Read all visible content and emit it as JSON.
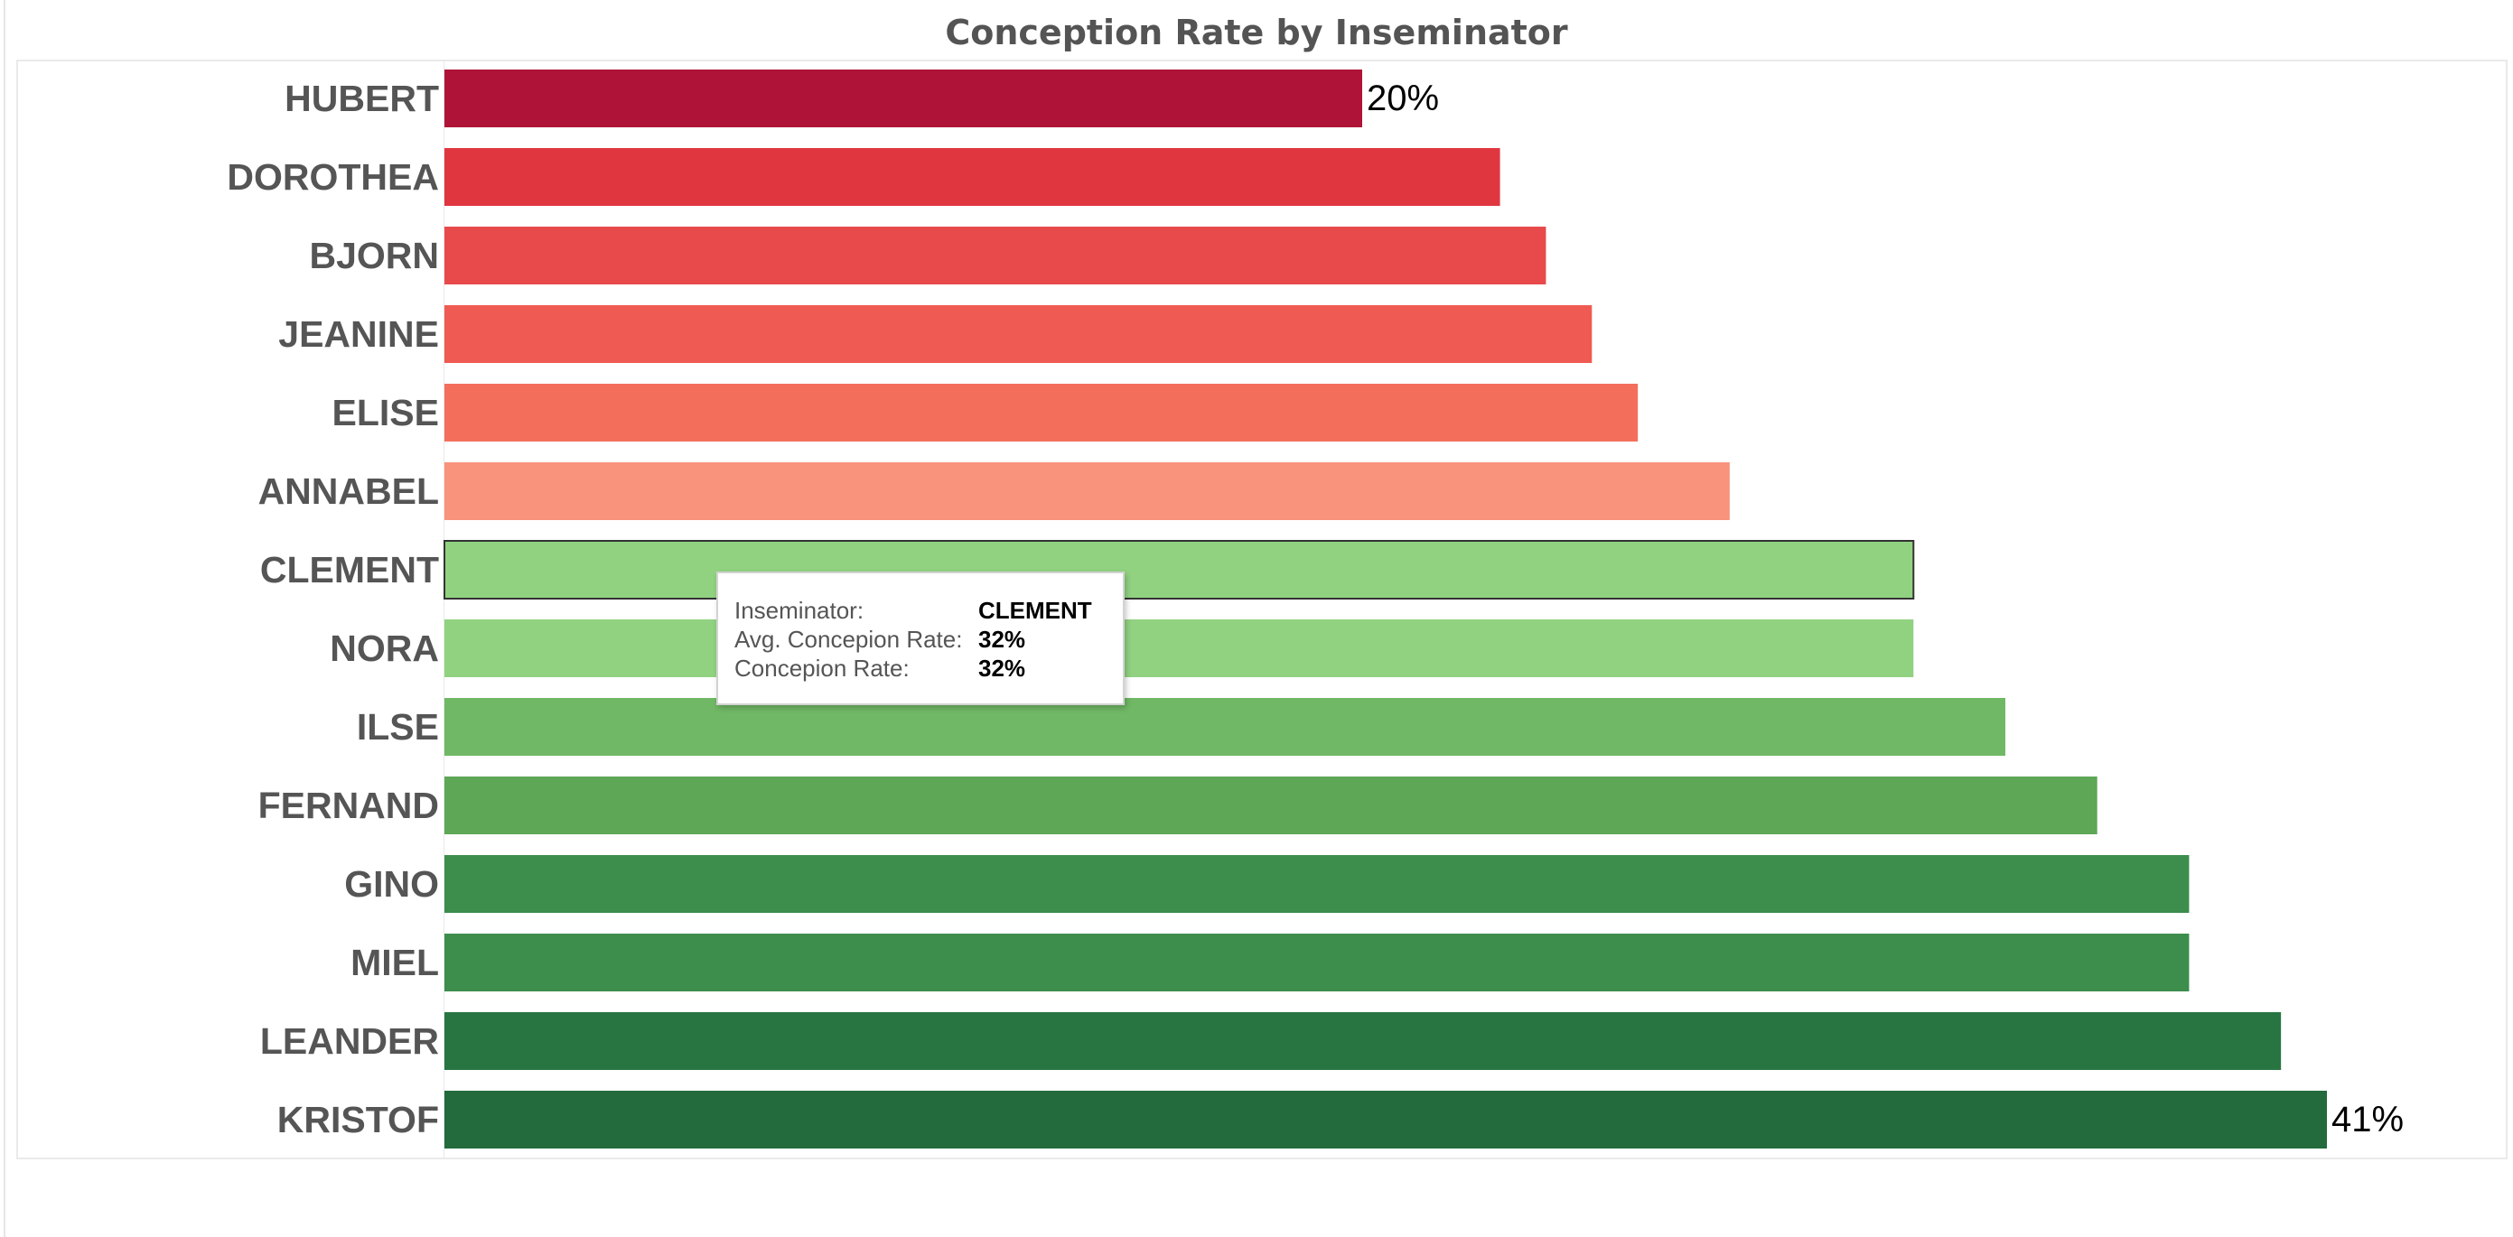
{
  "title": "Conception Rate by Inseminator",
  "chart_data": {
    "type": "bar",
    "orientation": "horizontal",
    "title": "Conception Rate by Inseminator",
    "xlabel": "",
    "ylabel": "",
    "xlim": [
      0,
      0.41
    ],
    "grid": false,
    "categories": [
      "HUBERT",
      "DOROTHEA",
      "BJORN",
      "JEANINE",
      "ELISE",
      "ANNABEL",
      "CLEMENT",
      "NORA",
      "ILSE",
      "FERNAND",
      "GINO",
      "MIEL",
      "LEANDER",
      "KRISTOF"
    ],
    "values": [
      0.2,
      0.23,
      0.24,
      0.25,
      0.26,
      0.28,
      0.32,
      0.32,
      0.34,
      0.36,
      0.38,
      0.38,
      0.4,
      0.41
    ],
    "colors": [
      "#b01338",
      "#df3640",
      "#e84a4c",
      "#ef5b52",
      "#f46e5c",
      "#f9937b",
      "#91d281",
      "#91d281",
      "#70b865",
      "#5da756",
      "#3d8d4d",
      "#3d8d4d",
      "#287542",
      "#236a3c"
    ],
    "data_labels": [
      {
        "category": "HUBERT",
        "text": "20%"
      },
      {
        "category": "KRISTOF",
        "text": "41%"
      }
    ],
    "highlighted_category": "CLEMENT"
  },
  "tooltip": {
    "rows": [
      {
        "key": "Inseminator:",
        "value": "CLEMENT"
      },
      {
        "key": "Avg. Concepion Rate:",
        "value": "32%"
      },
      {
        "key": "Concepion Rate:",
        "value": "32%"
      }
    ]
  }
}
